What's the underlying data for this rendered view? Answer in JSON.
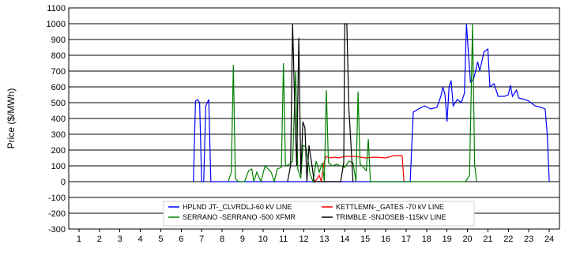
{
  "chart_data": {
    "type": "line",
    "title": "",
    "xlabel": "",
    "ylabel": "Price ($/MWh)",
    "xlim": [
      0.5,
      24.5
    ],
    "ylim": [
      -300,
      1100
    ],
    "x_ticks": [
      "1",
      "2",
      "3",
      "4",
      "5",
      "6",
      "7",
      "8",
      "9",
      "10",
      "11",
      "12",
      "13",
      "14",
      "15",
      "16",
      "17",
      "18",
      "19",
      "20",
      "21",
      "22",
      "23",
      "24"
    ],
    "y_ticks": [
      "-300",
      "-200",
      "-100",
      "0",
      "100",
      "200",
      "300",
      "400",
      "500",
      "600",
      "700",
      "800",
      "900",
      "1000",
      "1100"
    ],
    "grid": "horizontal",
    "legend_position": "bottom-center",
    "series": [
      {
        "name": "HPLND JT-_CLVRDLJ-60 kV LINE",
        "color": "#0000ff",
        "points": [
          [
            6.6,
            0
          ],
          [
            6.7,
            510
          ],
          [
            6.8,
            520
          ],
          [
            6.9,
            500
          ],
          [
            7.0,
            0
          ],
          [
            7.1,
            0
          ],
          [
            7.2,
            480
          ],
          [
            7.35,
            520
          ],
          [
            7.45,
            0
          ],
          [
            17.2,
            0
          ],
          [
            17.35,
            440
          ],
          [
            17.6,
            460
          ],
          [
            17.9,
            480
          ],
          [
            18.2,
            460
          ],
          [
            18.5,
            470
          ],
          [
            18.7,
            540
          ],
          [
            18.8,
            600
          ],
          [
            18.9,
            550
          ],
          [
            19.0,
            380
          ],
          [
            19.1,
            600
          ],
          [
            19.2,
            640
          ],
          [
            19.3,
            480
          ],
          [
            19.5,
            520
          ],
          [
            19.7,
            500
          ],
          [
            19.85,
            560
          ],
          [
            19.95,
            1000
          ],
          [
            20.05,
            800
          ],
          [
            20.15,
            630
          ],
          [
            20.3,
            650
          ],
          [
            20.4,
            700
          ],
          [
            20.5,
            760
          ],
          [
            20.6,
            700
          ],
          [
            20.8,
            820
          ],
          [
            21.0,
            840
          ],
          [
            21.1,
            600
          ],
          [
            21.3,
            620
          ],
          [
            21.5,
            540
          ],
          [
            21.8,
            540
          ],
          [
            22.0,
            550
          ],
          [
            22.1,
            610
          ],
          [
            22.2,
            540
          ],
          [
            22.4,
            580
          ],
          [
            22.5,
            530
          ],
          [
            22.8,
            520
          ],
          [
            23.0,
            510
          ],
          [
            23.3,
            480
          ],
          [
            23.6,
            470
          ],
          [
            23.8,
            460
          ],
          [
            23.9,
            300
          ],
          [
            24.0,
            0
          ]
        ]
      },
      {
        "name": "KETTLEMN-_GATES -70 kV LINE",
        "color": "#ff0000",
        "points": [
          [
            12.5,
            0
          ],
          [
            12.6,
            10
          ],
          [
            12.75,
            40
          ],
          [
            12.85,
            0
          ],
          [
            13.0,
            130
          ],
          [
            13.1,
            160
          ],
          [
            13.3,
            150
          ],
          [
            13.5,
            155
          ],
          [
            13.7,
            150
          ],
          [
            14.0,
            160
          ],
          [
            14.5,
            160
          ],
          [
            15.0,
            150
          ],
          [
            15.5,
            155
          ],
          [
            16.0,
            150
          ],
          [
            16.4,
            165
          ],
          [
            16.8,
            165
          ],
          [
            16.9,
            0
          ]
        ]
      },
      {
        "name": "SERRANO -SERRANO -500 XFMR",
        "color": "#008000",
        "points": [
          [
            8.3,
            0
          ],
          [
            8.45,
            60
          ],
          [
            8.55,
            740
          ],
          [
            8.65,
            20
          ],
          [
            8.8,
            0
          ],
          [
            9.1,
            0
          ],
          [
            9.3,
            70
          ],
          [
            9.45,
            80
          ],
          [
            9.55,
            0
          ],
          [
            9.7,
            60
          ],
          [
            9.9,
            0
          ],
          [
            10.1,
            100
          ],
          [
            10.25,
            80
          ],
          [
            10.4,
            60
          ],
          [
            10.55,
            0
          ],
          [
            10.7,
            80
          ],
          [
            10.9,
            90
          ],
          [
            11.0,
            750
          ],
          [
            11.1,
            100
          ],
          [
            11.3,
            110
          ],
          [
            11.45,
            130
          ],
          [
            11.6,
            700
          ],
          [
            11.7,
            80
          ],
          [
            11.85,
            20
          ],
          [
            11.95,
            230
          ],
          [
            12.1,
            220
          ],
          [
            12.2,
            140
          ],
          [
            12.3,
            50
          ],
          [
            12.45,
            0
          ],
          [
            12.6,
            130
          ],
          [
            12.75,
            60
          ],
          [
            12.9,
            120
          ],
          [
            13.0,
            0
          ],
          [
            13.1,
            580
          ],
          [
            13.2,
            120
          ],
          [
            13.4,
            100
          ],
          [
            13.6,
            110
          ],
          [
            13.8,
            100
          ],
          [
            14.0,
            90
          ],
          [
            14.2,
            130
          ],
          [
            14.4,
            120
          ],
          [
            14.55,
            0
          ],
          [
            14.65,
            570
          ],
          [
            14.75,
            110
          ],
          [
            14.85,
            100
          ],
          [
            15.05,
            70
          ],
          [
            15.15,
            270
          ],
          [
            15.25,
            0
          ],
          [
            19.9,
            0
          ],
          [
            20.1,
            40
          ],
          [
            20.25,
            1000
          ],
          [
            20.35,
            110
          ],
          [
            20.45,
            0
          ]
        ]
      },
      {
        "name": "TRIMBLE -SNJOSEB -115kV LINE",
        "color": "#000000",
        "points": [
          [
            11.2,
            0
          ],
          [
            11.35,
            100
          ],
          [
            11.45,
            1000
          ],
          [
            11.55,
            480
          ],
          [
            11.65,
            100
          ],
          [
            11.75,
            910
          ],
          [
            11.85,
            50
          ],
          [
            11.95,
            380
          ],
          [
            12.05,
            340
          ],
          [
            12.15,
            0
          ],
          [
            12.25,
            230
          ],
          [
            12.4,
            100
          ],
          [
            12.5,
            0
          ],
          [
            13.8,
            0
          ],
          [
            13.95,
            120
          ],
          [
            14.0,
            1000
          ],
          [
            14.1,
            1000
          ],
          [
            14.2,
            460
          ],
          [
            14.3,
            240
          ],
          [
            14.4,
            0
          ]
        ]
      }
    ]
  }
}
